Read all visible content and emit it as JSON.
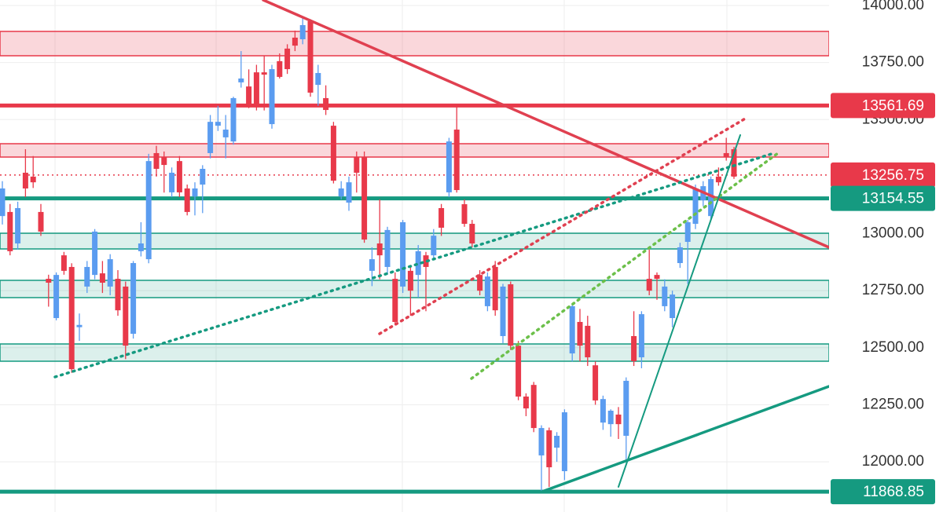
{
  "chart_data": {
    "type": "candlestick",
    "up_color": "#5b9cf0",
    "down_color": "#e8394a",
    "ylim": [
      11780,
      14024
    ],
    "yticks": [
      {
        "value": 14000,
        "label": "14000.00"
      },
      {
        "value": 13750,
        "label": "13750.00"
      },
      {
        "value": 13500,
        "label": "13500.00"
      },
      {
        "value": 13000,
        "label": "13000.00"
      },
      {
        "value": 12750,
        "label": "12750.00"
      },
      {
        "value": 12500,
        "label": "12500.00"
      },
      {
        "value": 12250,
        "label": "12250.00"
      },
      {
        "value": 12000,
        "label": "12000.00"
      }
    ],
    "grid": true,
    "price_lines": [
      {
        "value": 13561.69,
        "color": "#e8394a",
        "style": "solid"
      },
      {
        "value": 13256.75,
        "color": "#e8394a",
        "style": "dotted"
      },
      {
        "value": 13154.55,
        "color": "#159a80",
        "style": "solid"
      },
      {
        "value": 11868.85,
        "color": "#159a80",
        "style": "solid"
      }
    ],
    "candles": [
      [
        13077,
        13230,
        13040,
        13198
      ],
      [
        13095,
        13130,
        12905,
        12923
      ],
      [
        12957,
        13140,
        12930,
        13112
      ],
      [
        13267,
        13370,
        13160,
        13198
      ],
      [
        13250,
        13340,
        13200,
        13225
      ],
      [
        13095,
        13130,
        12990,
        13009
      ],
      [
        12802,
        12820,
        12680,
        12785
      ],
      [
        12630,
        12830,
        12620,
        12819
      ],
      [
        12905,
        12920,
        12820,
        12837
      ],
      [
        12854,
        12870,
        12390,
        12406
      ],
      [
        12590,
        12650,
        12530,
        12600
      ],
      [
        12768,
        12880,
        12740,
        12854
      ],
      [
        12819,
        13020,
        12800,
        13009
      ],
      [
        12826,
        12880,
        12740,
        12785
      ],
      [
        12768,
        12910,
        12730,
        12888
      ],
      [
        12802,
        12840,
        12640,
        12664
      ],
      [
        12768,
        12790,
        12450,
        12509
      ],
      [
        12561,
        12880,
        12540,
        12871
      ],
      [
        12923,
        13050,
        12900,
        12957
      ],
      [
        12888,
        13350,
        12870,
        13318
      ],
      [
        13353,
        13385,
        13250,
        13284
      ],
      [
        13336,
        13360,
        13180,
        13301
      ],
      [
        13181,
        13290,
        13160,
        13267
      ],
      [
        13318,
        13340,
        13160,
        13181
      ],
      [
        13198,
        13215,
        13080,
        13095
      ],
      [
        13163,
        13225,
        13080,
        13198
      ],
      [
        13215,
        13300,
        13090,
        13284
      ],
      [
        13353,
        13520,
        13330,
        13490
      ],
      [
        13473,
        13560,
        13450,
        13490
      ],
      [
        13422,
        13520,
        13330,
        13456
      ],
      [
        13404,
        13600,
        13390,
        13594
      ],
      [
        13663,
        13800,
        13640,
        13680
      ],
      [
        13645,
        13720,
        13550,
        13559
      ],
      [
        13707,
        13740,
        13540,
        13559
      ],
      [
        13707,
        13780,
        13540,
        13697
      ],
      [
        13480,
        13740,
        13460,
        13721
      ],
      [
        13756,
        13790,
        13680,
        13687
      ],
      [
        13811,
        13830,
        13700,
        13721
      ],
      [
        13859,
        13890,
        13800,
        13824
      ],
      [
        13852,
        13950,
        13830,
        13914
      ],
      [
        13931,
        13940,
        13600,
        13618
      ],
      [
        13652,
        13740,
        13560,
        13704
      ],
      [
        13594,
        13650,
        13520,
        13542
      ],
      [
        13473,
        13490,
        13220,
        13232
      ],
      [
        13163,
        13230,
        13150,
        13198
      ],
      [
        13136,
        13250,
        13100,
        13225
      ],
      [
        13336,
        13360,
        13180,
        13267
      ],
      [
        13336,
        13360,
        12960,
        12974
      ],
      [
        12837,
        12940,
        12770,
        12888
      ],
      [
        12957,
        13150,
        12800,
        12905
      ],
      [
        12854,
        13030,
        12820,
        13016
      ],
      [
        12802,
        12830,
        12600,
        12613
      ],
      [
        12768,
        13060,
        12740,
        13050
      ],
      [
        12837,
        12860,
        12640,
        12750
      ],
      [
        12819,
        12950,
        12720,
        12923
      ],
      [
        12905,
        12920,
        12660,
        12854
      ],
      [
        12905,
        13020,
        12890,
        12991
      ],
      [
        13112,
        13130,
        12990,
        13026
      ],
      [
        13181,
        13420,
        13160,
        13404
      ],
      [
        13456,
        13560,
        13180,
        13191
      ],
      [
        13129,
        13150,
        13030,
        13043
      ],
      [
        13043,
        13060,
        12940,
        12957
      ],
      [
        12819,
        12840,
        12730,
        12750
      ],
      [
        12682,
        12830,
        12660,
        12812
      ],
      [
        12854,
        12880,
        12640,
        12664
      ],
      [
        12551,
        12780,
        12520,
        12768
      ],
      [
        12778,
        12790,
        12490,
        12509
      ],
      [
        12509,
        12530,
        12270,
        12286
      ],
      [
        12286,
        12300,
        12200,
        12234
      ],
      [
        12337,
        12350,
        12130,
        12148
      ],
      [
        12028,
        12160,
        11870,
        12148
      ],
      [
        12138,
        12150,
        11890,
        11976
      ],
      [
        12062,
        12130,
        12000,
        12114
      ],
      [
        11959,
        12230,
        11920,
        12217
      ],
      [
        12475,
        12690,
        12440,
        12682
      ],
      [
        12613,
        12670,
        12440,
        12509
      ],
      [
        12596,
        12640,
        12420,
        12458
      ],
      [
        12423,
        12440,
        12250,
        12269
      ],
      [
        12172,
        12290,
        12140,
        12275
      ],
      [
        12165,
        12230,
        12110,
        12224
      ],
      [
        12207,
        12240,
        12100,
        12165
      ],
      [
        12114,
        12370,
        12000,
        12355
      ],
      [
        12551,
        12660,
        12420,
        12441
      ],
      [
        12458,
        12660,
        12410,
        12647
      ],
      [
        12802,
        12930,
        12730,
        12750
      ],
      [
        12819,
        12830,
        12710,
        12802
      ],
      [
        12682,
        12800,
        12660,
        12768
      ],
      [
        12630,
        12750,
        12590,
        12733
      ],
      [
        12871,
        12960,
        12850,
        12940
      ],
      [
        12964,
        13060,
        12780,
        13050
      ],
      [
        13043,
        13215,
        13020,
        13198
      ],
      [
        13146,
        13230,
        13120,
        13208
      ],
      [
        13077,
        13250,
        13060,
        13239
      ],
      [
        13250,
        13290,
        13210,
        13225
      ],
      [
        13353,
        13420,
        13320,
        13336
      ],
      [
        13370,
        13380,
        13240,
        13250
      ]
    ]
  }
}
